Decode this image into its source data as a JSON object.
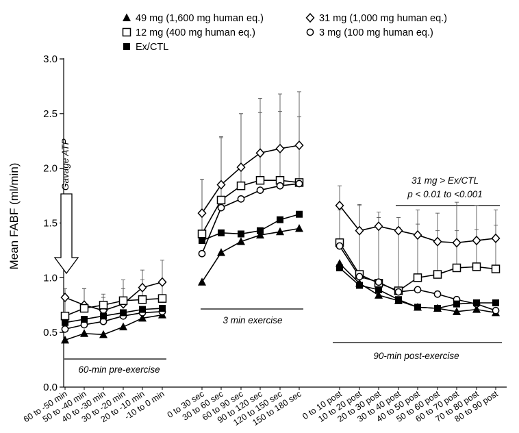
{
  "chart_data": {
    "type": "line",
    "ylabel": "Mean FABF (ml/min)",
    "ylim": [
      0,
      3.0
    ],
    "yticks": [
      "0.0",
      "0.5",
      "1.0",
      "1.5",
      "2.0",
      "2.5",
      "3.0"
    ],
    "categories": [
      "60 to -50 min",
      "50 to -40 min",
      "40 to -30 min",
      "30 to -20 min",
      "20 to -10 min",
      "-10 to 0 min",
      "0 to 30 sec",
      "30 to 60 sec",
      "60 to 90 sec",
      "90 to 120 sec",
      "120 to 150 sec",
      "150 to 180 sec",
      "0 to 10 post",
      "10 to 20 post",
      "20 to 30 post",
      "30 to 40 post",
      "40 to 50 post",
      "50 to 60 post",
      "60 to 70 post",
      "70 to 80 post",
      "80 to 90 post"
    ],
    "segments": [
      [
        0,
        5
      ],
      [
        6,
        11
      ],
      [
        12,
        20
      ]
    ],
    "series": [
      {
        "name": "49 mg (1,600 mg human eq.)",
        "marker": "filled-triangle",
        "values": [
          0.43,
          0.49,
          0.48,
          0.55,
          0.63,
          0.66,
          0.96,
          1.23,
          1.33,
          1.39,
          1.42,
          1.45,
          1.13,
          0.95,
          0.84,
          0.79,
          0.73,
          0.72,
          0.69,
          0.71,
          0.68
        ],
        "errors": [
          0,
          0,
          0,
          0,
          0,
          0,
          0,
          0,
          0,
          0,
          0,
          0,
          0,
          0,
          0,
          0,
          0,
          0,
          0,
          0,
          0
        ]
      },
      {
        "name": "31 mg (1,000 mg human eq.)",
        "marker": "open-diamond",
        "values": [
          0.82,
          0.75,
          0.7,
          0.76,
          0.91,
          0.96,
          1.59,
          1.85,
          2.01,
          2.14,
          2.18,
          2.21,
          1.66,
          1.43,
          1.47,
          1.43,
          1.39,
          1.33,
          1.32,
          1.34,
          1.36
        ],
        "errors": [
          0.08,
          0.15,
          0.12,
          0.14,
          0.16,
          0.2,
          0.31,
          0.43,
          0.49,
          0.5,
          0.5,
          0.49,
          0.18,
          0.24,
          0.13,
          0.12,
          0.1,
          0.1,
          0.11,
          0.1,
          0.12
        ]
      },
      {
        "name": "12 mg (400 mg human eq.)",
        "marker": "open-square",
        "values": [
          0.65,
          0.72,
          0.75,
          0.79,
          0.8,
          0.81,
          1.4,
          1.71,
          1.84,
          1.89,
          1.89,
          1.87,
          1.32,
          1.03,
          0.95,
          0.88,
          1.0,
          1.03,
          1.09,
          1.1,
          1.08
        ],
        "errors": [
          0.15,
          0.18,
          0.1,
          0.19,
          0.18,
          0.17,
          0.5,
          0.58,
          0.66,
          0.62,
          0.63,
          0.6,
          0.3,
          0.63,
          0.6,
          0.58,
          0.62,
          0.56,
          0.6,
          0.56,
          0.54
        ]
      },
      {
        "name": "3 mg (100 mg human eq.)",
        "marker": "open-circle",
        "values": [
          0.53,
          0.57,
          0.6,
          0.65,
          0.68,
          0.69,
          1.22,
          1.64,
          1.72,
          1.8,
          1.84,
          1.86,
          1.29,
          1.01,
          0.96,
          0.87,
          0.89,
          0.85,
          0.8,
          0.76,
          0.7
        ],
        "errors": [
          0,
          0,
          0,
          0,
          0,
          0,
          0,
          0,
          0,
          0,
          0,
          0,
          0,
          0,
          0,
          0,
          0,
          0,
          0,
          0,
          0
        ]
      },
      {
        "name": "Ex/CTL",
        "marker": "filled-square",
        "values": [
          0.59,
          0.62,
          0.65,
          0.68,
          0.71,
          0.72,
          1.34,
          1.41,
          1.4,
          1.43,
          1.53,
          1.58,
          1.09,
          0.93,
          0.89,
          0.8,
          0.73,
          0.72,
          0.76,
          0.77,
          0.77
        ],
        "errors": [
          0,
          0,
          0,
          0,
          0,
          0,
          0,
          0,
          0,
          0,
          0,
          0,
          0,
          0,
          0,
          0,
          0,
          0,
          0,
          0,
          0
        ]
      }
    ],
    "legend_placement": "top",
    "annotations": {
      "gavage": "Gavage ATP",
      "pre": "60-min pre-exercise",
      "exercise": "3 min exercise",
      "post": "90-min post-exercise",
      "significance_line1": "31 mg > Ex/CTL",
      "significance_line2": "p < 0.01 to <0.001"
    },
    "grid": false
  }
}
